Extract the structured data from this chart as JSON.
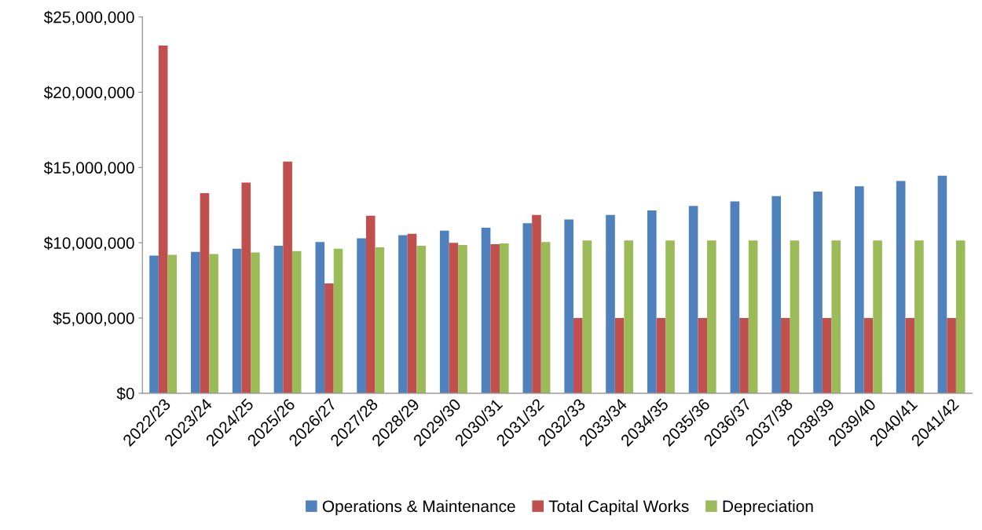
{
  "chart_data": {
    "type": "bar",
    "categories": [
      "2022/23",
      "2023/24",
      "2024/25",
      "2025/26",
      "2026/27",
      "2027/28",
      "2028/29",
      "2029/30",
      "2030/31",
      "2031/32",
      "2032/33",
      "2033/34",
      "2034/35",
      "2035/36",
      "2036/37",
      "2037/38",
      "2038/39",
      "2039/40",
      "2040/41",
      "2041/42"
    ],
    "series": [
      {
        "name": "Operations & Maintenance",
        "color": "#4f81bd",
        "values": [
          9150000,
          9400000,
          9600000,
          9800000,
          10050000,
          10300000,
          10500000,
          10800000,
          11000000,
          11300000,
          11550000,
          11850000,
          12150000,
          12450000,
          12750000,
          13100000,
          13400000,
          13750000,
          14100000,
          14450000
        ]
      },
      {
        "name": "Total Capital Works",
        "color": "#c0504d",
        "values": [
          23100000,
          13300000,
          14000000,
          15400000,
          7300000,
          11800000,
          10600000,
          10000000,
          9900000,
          11850000,
          5000000,
          5000000,
          5000000,
          5000000,
          5000000,
          5000000,
          5000000,
          5000000,
          5000000,
          5000000
        ]
      },
      {
        "name": "Depreciation",
        "color": "#9bbb59",
        "values": [
          9200000,
          9250000,
          9350000,
          9450000,
          9600000,
          9700000,
          9800000,
          9850000,
          9950000,
          10050000,
          10150000,
          10150000,
          10150000,
          10150000,
          10150000,
          10150000,
          10150000,
          10150000,
          10150000,
          10150000
        ]
      }
    ],
    "ylim": [
      0,
      25000000
    ],
    "yticks": [
      {
        "value": 0,
        "label": "$0"
      },
      {
        "value": 5000000,
        "label": "$5,000,000"
      },
      {
        "value": 10000000,
        "label": "$10,000,000"
      },
      {
        "value": 15000000,
        "label": "$15,000,000"
      },
      {
        "value": 20000000,
        "label": "$20,000,000"
      },
      {
        "value": 25000000,
        "label": "$25,000,000"
      }
    ],
    "grid": false,
    "legend": "bottom"
  }
}
